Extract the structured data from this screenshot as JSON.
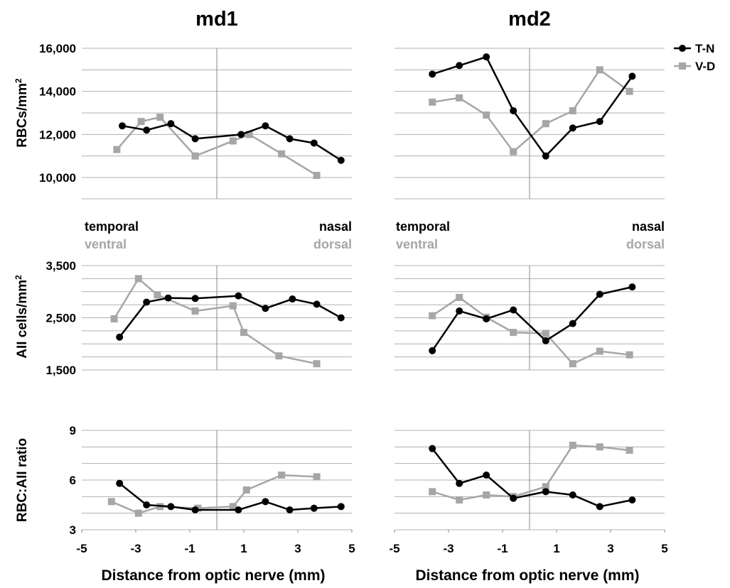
{
  "figure": {
    "column_titles": [
      "md1",
      "md2"
    ],
    "ylabels": [
      "RBCs/mm",
      "AII cells/mm",
      "RBC:AII ratio"
    ],
    "ylabel_superscript": "2",
    "xlabel": "Distance from optic nerve (mm)",
    "orientation_labels": {
      "left_top": "temporal",
      "left_bottom": "ventral",
      "right_top": "nasal",
      "right_bottom": "dorsal"
    },
    "legend": [
      {
        "label": "T-N",
        "color": "#000000",
        "marker": "circle"
      },
      {
        "label": "V-D",
        "color": "#a6a6a6",
        "marker": "square"
      }
    ]
  },
  "chart_data": [
    {
      "type": "line",
      "title": "md1",
      "ylabel": "RBCs/mm²",
      "xlabel": "",
      "xlim": [
        -5,
        5
      ],
      "ylim": [
        9000,
        16500
      ],
      "yticks": [
        10000,
        12000,
        14000,
        16000
      ],
      "ytick_labels": [
        "10,000",
        "12,000",
        "14,000",
        "16,000"
      ],
      "grid": true,
      "legend": "none",
      "series": [
        {
          "name": "T-N",
          "color": "#000000",
          "marker": "circle",
          "x": [
            -3.5,
            -2.6,
            -1.7,
            -0.8,
            0.9,
            1.8,
            2.7,
            3.6,
            4.6
          ],
          "y": [
            12400,
            12200,
            12500,
            11800,
            12000,
            12400,
            11800,
            11600,
            10800
          ]
        },
        {
          "name": "V-D",
          "color": "#a6a6a6",
          "marker": "square",
          "x": [
            -3.7,
            -2.8,
            -2.1,
            -0.8,
            0.6,
            1.2,
            2.4,
            3.7
          ],
          "y": [
            11300,
            12600,
            12800,
            11000,
            11700,
            12000,
            11100,
            10100
          ]
        }
      ]
    },
    {
      "type": "line",
      "title": "md2",
      "ylabel": "",
      "xlabel": "",
      "xlim": [
        -5,
        5
      ],
      "ylim": [
        9000,
        16500
      ],
      "yticks": [
        10000,
        12000,
        14000,
        16000
      ],
      "ytick_labels": [],
      "grid": true,
      "legend": "top-right",
      "series": [
        {
          "name": "T-N",
          "color": "#000000",
          "marker": "circle",
          "x": [
            -3.6,
            -2.6,
            -1.6,
            -0.6,
            0.6,
            1.6,
            2.6,
            3.8
          ],
          "y": [
            14800,
            15200,
            15600,
            13100,
            11000,
            12300,
            12600,
            14700
          ]
        },
        {
          "name": "V-D",
          "color": "#a6a6a6",
          "marker": "square",
          "x": [
            -3.6,
            -2.6,
            -1.6,
            -0.6,
            0.6,
            1.6,
            2.6,
            3.7
          ],
          "y": [
            13500,
            13700,
            12900,
            11200,
            12500,
            13100,
            15000,
            14000
          ]
        }
      ]
    },
    {
      "type": "line",
      "title": "",
      "ylabel": "AII cells/mm²",
      "xlabel": "",
      "xlim": [
        -5,
        5
      ],
      "ylim": [
        1500,
        3500
      ],
      "yticks": [
        1500,
        2500,
        3500
      ],
      "ytick_labels": [
        "1,500",
        "2,500",
        "3,500"
      ],
      "grid": true,
      "legend": "none",
      "series": [
        {
          "name": "T-N",
          "color": "#000000",
          "marker": "circle",
          "x": [
            -3.6,
            -2.6,
            -1.8,
            -0.8,
            0.8,
            1.8,
            2.8,
            3.7,
            4.6
          ],
          "y": [
            2130,
            2800,
            2880,
            2870,
            2920,
            2680,
            2860,
            2760,
            2500
          ]
        },
        {
          "name": "V-D",
          "color": "#a6a6a6",
          "marker": "square",
          "x": [
            -3.8,
            -2.9,
            -2.2,
            -0.8,
            0.6,
            1.0,
            2.3,
            3.7
          ],
          "y": [
            2480,
            3250,
            2940,
            2630,
            2730,
            2220,
            1770,
            1620
          ]
        }
      ]
    },
    {
      "type": "line",
      "title": "",
      "ylabel": "",
      "xlabel": "",
      "xlim": [
        -5,
        5
      ],
      "ylim": [
        1500,
        3500
      ],
      "yticks": [
        1500,
        2500,
        3500
      ],
      "ytick_labels": [],
      "grid": true,
      "legend": "none",
      "series": [
        {
          "name": "T-N",
          "color": "#000000",
          "marker": "circle",
          "x": [
            -3.6,
            -2.6,
            -1.6,
            -0.6,
            0.6,
            1.6,
            2.6,
            3.8
          ],
          "y": [
            1870,
            2630,
            2480,
            2650,
            2060,
            2390,
            2950,
            3090
          ]
        },
        {
          "name": "V-D",
          "color": "#a6a6a6",
          "marker": "square",
          "x": [
            -3.6,
            -2.6,
            -1.6,
            -0.6,
            0.6,
            1.6,
            2.6,
            3.7
          ],
          "y": [
            2540,
            2890,
            2510,
            2220,
            2200,
            1620,
            1860,
            1790
          ]
        }
      ]
    },
    {
      "type": "line",
      "title": "",
      "ylabel": "RBC:AII ratio",
      "xlabel": "Distance from optic nerve (mm)",
      "xlim": [
        -5,
        5
      ],
      "ylim": [
        3,
        9
      ],
      "xticks": [
        -5,
        -3,
        -1,
        1,
        3,
        5
      ],
      "yticks": [
        3,
        6,
        9
      ],
      "ytick_labels": [
        "3",
        "6",
        "9"
      ],
      "grid": true,
      "legend": "none",
      "series": [
        {
          "name": "T-N",
          "color": "#000000",
          "marker": "circle",
          "x": [
            -3.6,
            -2.6,
            -1.7,
            -0.8,
            0.8,
            1.8,
            2.7,
            3.6,
            4.6
          ],
          "y": [
            5.8,
            4.5,
            4.4,
            4.2,
            4.2,
            4.7,
            4.2,
            4.3,
            4.4
          ]
        },
        {
          "name": "V-D",
          "color": "#a6a6a6",
          "marker": "square",
          "x": [
            -3.9,
            -2.9,
            -2.1,
            -0.7,
            0.6,
            1.1,
            2.4,
            3.7
          ],
          "y": [
            4.7,
            4.0,
            4.4,
            4.3,
            4.4,
            5.4,
            6.3,
            6.2
          ]
        }
      ]
    },
    {
      "type": "line",
      "title": "",
      "ylabel": "",
      "xlabel": "Distance from optic nerve (mm)",
      "xlim": [
        -5,
        5
      ],
      "ylim": [
        3,
        9
      ],
      "xticks": [
        -5,
        -3,
        -1,
        1,
        3,
        5
      ],
      "yticks": [
        3,
        6,
        9
      ],
      "ytick_labels": [],
      "grid": true,
      "legend": "none",
      "series": [
        {
          "name": "T-N",
          "color": "#000000",
          "marker": "circle",
          "x": [
            -3.6,
            -2.6,
            -1.6,
            -0.6,
            0.6,
            1.6,
            2.6,
            3.8
          ],
          "y": [
            7.9,
            5.8,
            6.3,
            4.9,
            5.3,
            5.1,
            4.4,
            4.8
          ]
        },
        {
          "name": "V-D",
          "color": "#a6a6a6",
          "marker": "square",
          "x": [
            -3.6,
            -2.6,
            -1.6,
            -0.6,
            0.6,
            1.6,
            2.6,
            3.7
          ],
          "y": [
            5.3,
            4.8,
            5.1,
            5.0,
            5.6,
            8.1,
            8.0,
            7.8
          ]
        }
      ]
    }
  ]
}
